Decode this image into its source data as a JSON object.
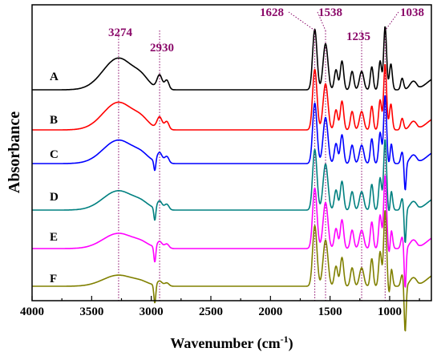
{
  "chart_data": {
    "type": "line",
    "title": "",
    "xlabel": "Wavenumber (cm-1)",
    "xlabel_main": "Wavenumber (cm",
    "xlabel_sup": "-1",
    "xlabel_close": ")",
    "ylabel": "Absorbance",
    "x_reversed": true,
    "xlim": [
      4000,
      650
    ],
    "x_ticks": [
      "4000",
      "3500",
      "3000",
      "2500",
      "2000",
      "1500",
      "1000"
    ],
    "x_tick_values": [
      4000,
      3500,
      3000,
      2500,
      2000,
      1500,
      1000
    ],
    "y_ticks": false,
    "grid": false,
    "legend": "inline labels at left of each curve",
    "peak_markers": [
      {
        "label": "3274",
        "x": 3274
      },
      {
        "label": "2930",
        "x": 2930
      },
      {
        "label": "1628",
        "x": 1628
      },
      {
        "label": "1538",
        "x": 1538
      },
      {
        "label": "1235",
        "x": 1235
      },
      {
        "label": "1038",
        "x": 1038
      }
    ],
    "series": [
      {
        "name": "A",
        "color": "#000000",
        "baseline": 0.0
      },
      {
        "name": "B",
        "color": "#ff0000",
        "baseline": -0.55
      },
      {
        "name": "C",
        "color": "#0000ff",
        "baseline": -1.1
      },
      {
        "name": "D",
        "color": "#008080",
        "baseline": -1.65
      },
      {
        "name": "E",
        "color": "#ff00ff",
        "baseline": -2.2
      },
      {
        "name": "F",
        "color": "#808000",
        "baseline": -2.75
      }
    ]
  }
}
